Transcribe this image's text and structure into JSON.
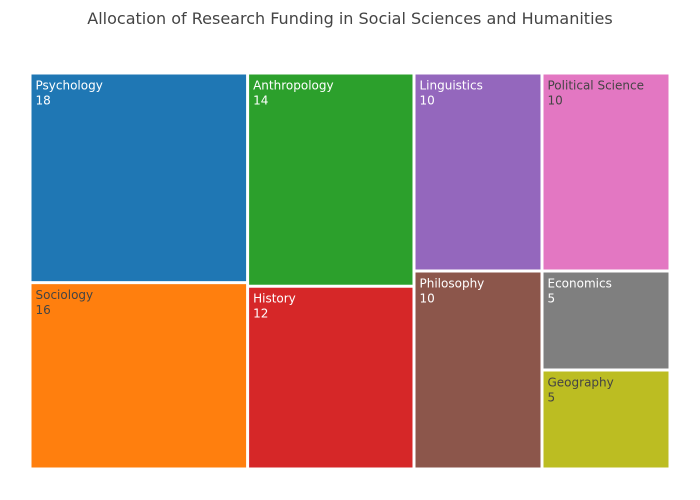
{
  "chart_data": {
    "type": "treemap",
    "title": "Allocation of Research Funding in Social Sciences and Humanities",
    "items": [
      {
        "label": "Psychology",
        "value": 18,
        "color": "#1f77b4",
        "text_color": "#ffffff"
      },
      {
        "label": "Sociology",
        "value": 16,
        "color": "#ff7f0e",
        "text_color": "#444444"
      },
      {
        "label": "Anthropology",
        "value": 14,
        "color": "#2ca02c",
        "text_color": "#ffffff"
      },
      {
        "label": "History",
        "value": 12,
        "color": "#d62728",
        "text_color": "#ffffff"
      },
      {
        "label": "Linguistics",
        "value": 10,
        "color": "#9467bd",
        "text_color": "#ffffff"
      },
      {
        "label": "Political Science",
        "value": 10,
        "color": "#e377c2",
        "text_color": "#444444"
      },
      {
        "label": "Philosophy",
        "value": 10,
        "color": "#8c564b",
        "text_color": "#ffffff"
      },
      {
        "label": "Economics",
        "value": 5,
        "color": "#7f7f7f",
        "text_color": "#ffffff"
      },
      {
        "label": "Geography",
        "value": 5,
        "color": "#bcbd22",
        "text_color": "#444444"
      }
    ]
  }
}
